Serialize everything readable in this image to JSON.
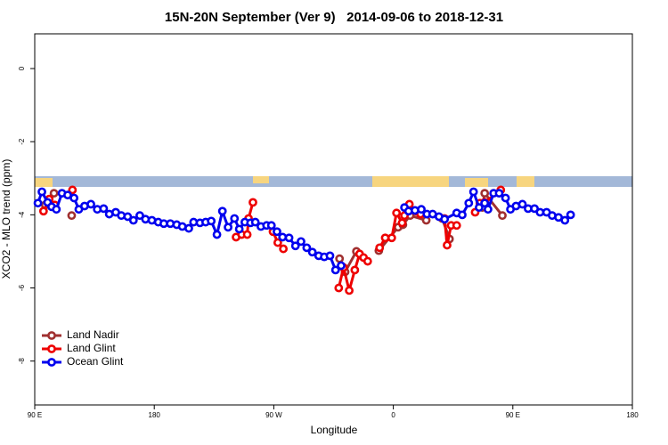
{
  "chart_data": {
    "type": "line",
    "title": "15N-20N September (Ver 9)   2014-09-06 to 2018-12-31",
    "xlabel": "Longitude",
    "ylabel": "XCO2 - MLO trend (ppm)",
    "xlim": [
      90,
      540
    ],
    "ylim": [
      -9.2,
      0.95
    ],
    "xticks": [
      {
        "value": 90,
        "label": "90 E"
      },
      180,
      {
        "value": 270,
        "label": "90 W"
      },
      {
        "value": 360,
        "label": "0"
      },
      {
        "value": 450,
        "label": "90 E"
      },
      {
        "value": 540,
        "label": "180"
      }
    ],
    "yticks": [
      0,
      -2,
      -4,
      -6,
      -8
    ],
    "legend": "bottomleft",
    "series": [
      {
        "name": "Land Nadir",
        "color": "#a03030",
        "x": [
          97.9,
          104.5,
          null,
          117.8,
          null,
          319.5,
          323.7,
          332.2,
          null,
          349.1,
          363.6,
          367.2,
          372.7,
          384.8,
          null,
          396.8,
          402.3,
          null,
          427,
          428.8,
          442.1
        ],
        "values": [
          -3.73,
          -3.41,
          null,
          -4.02,
          null,
          -5.2,
          -5.56,
          -5,
          null,
          -4.98,
          -4.34,
          -4.27,
          -4.02,
          -4.15,
          null,
          -4.1,
          -4.66,
          null,
          -3.8,
          -3.41,
          -4.02
        ]
      },
      {
        "name": "Land Glint",
        "color": "#ee0000",
        "x": [
          96.6,
          100.9,
          105.1,
          null,
          118.4,
          null,
          241.6,
          245.8,
          250,
          251,
          254.3,
          null,
          269.4,
          273,
          277.2,
          null,
          318.9,
          322.5,
          326.8,
          331,
          334.6,
          337.6,
          340.7,
          null,
          349.7,
          353.9,
          358.8,
          362.4,
          366.6,
          368.4,
          372.1,
          377.5,
          380.5,
          null,
          398.6,
          400.5,
          403.5,
          407.7,
          null,
          421.6,
          425.2,
          428.8,
          440.9
        ],
        "values": [
          -3.9,
          -3.57,
          -3.73,
          null,
          -3.32,
          null,
          -4.61,
          -4.54,
          -4.54,
          -4.1,
          -3.66,
          null,
          -4.46,
          -4.76,
          -4.93,
          null,
          -6,
          -5.44,
          -6.07,
          -5.51,
          -5.07,
          -5.17,
          -5.27,
          null,
          -4.9,
          -4.63,
          -4.63,
          -3.95,
          -4.22,
          -4.02,
          -3.71,
          -3.9,
          -3.98,
          null,
          -4.1,
          -4.83,
          -4.29,
          -4.29,
          null,
          -3.93,
          -3.68,
          -3.66,
          -3.32
        ]
      },
      {
        "name": "Ocean Glint",
        "color": "#0000ee",
        "x": [
          92.4,
          95.4,
          99.7,
          102.7,
          106.3,
          110.5,
          114.8,
          119.6,
          123.2,
          127.5,
          132.3,
          137.1,
          141.9,
          146.1,
          151,
          155.2,
          160,
          164.3,
          169.1,
          173.4,
          178.2,
          183,
          187.2,
          192.1,
          196.9,
          201.1,
          206,
          209.6,
          214.4,
          218.7,
          222.9,
          227.2,
          231.3,
          235.6,
          240.4,
          244,
          248.2,
          252.5,
          256.1,
          260.3,
          264.6,
          268.2,
          272.4,
          276.6,
          281.5,
          286.3,
          290.5,
          294.8,
          299,
          303.8,
          308,
          312.3,
          316.5,
          320.7,
          null,
          368.4,
          371.5,
          376.3,
          381.1,
          385.3,
          389.6,
          394.4,
          398.6,
          407.7,
          411.9,
          416.8,
          420.4,
          424.6,
          428.8,
          431.3,
          435.5,
          439.7,
          444.5,
          448.2,
          452.4,
          457.2,
          461.5,
          466.3,
          470.5,
          475.4,
          479.6,
          484.4,
          489.2,
          493.5
        ],
        "values": [
          -3.68,
          -3.37,
          -3.66,
          -3.78,
          -3.85,
          -3.41,
          -3.46,
          -3.54,
          -3.85,
          -3.76,
          -3.71,
          -3.85,
          -3.83,
          -3.98,
          -3.93,
          -4.02,
          -4.05,
          -4.15,
          -4.02,
          -4.12,
          -4.15,
          -4.2,
          -4.24,
          -4.24,
          -4.27,
          -4.32,
          -4.37,
          -4.2,
          -4.22,
          -4.2,
          -4.17,
          -4.54,
          -3.9,
          -4.34,
          -4.1,
          -4.39,
          -4.2,
          -4.22,
          -4.2,
          -4.32,
          -4.29,
          -4.29,
          -4.46,
          -4.61,
          -4.63,
          -4.85,
          -4.73,
          -4.9,
          -5.02,
          -5.12,
          -5.15,
          -5.12,
          -5.51,
          -5.39,
          null,
          -3.8,
          -3.9,
          -3.88,
          -3.85,
          -3.98,
          -3.98,
          -4.05,
          -4.12,
          -3.95,
          -4,
          -3.68,
          -3.37,
          -3.8,
          -3.68,
          -3.85,
          -3.41,
          -3.41,
          -3.54,
          -3.85,
          -3.76,
          -3.71,
          -3.83,
          -3.83,
          -3.93,
          -3.93,
          -4.02,
          -4.07,
          -4.15,
          -4
        ]
      }
    ]
  }
}
